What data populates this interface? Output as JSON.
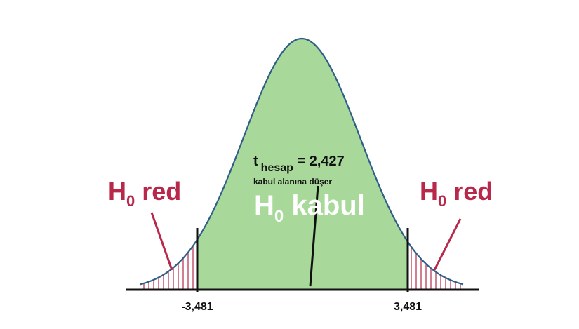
{
  "distribution": {
    "critical_left": -3.481,
    "critical_right": 3.481,
    "t_computed": 2.427
  },
  "labels": {
    "left_reject": {
      "main": "H",
      "sub": "0",
      "rest": " red"
    },
    "right_reject": {
      "main": "H",
      "sub": "0",
      "rest": " red"
    },
    "accept": {
      "main": "H",
      "sub": "0",
      "rest": " kabul"
    },
    "t_stat": {
      "main": "t",
      "sub": "hesap",
      "rest": " = 2,427"
    },
    "note": "kabul alanına düşer",
    "crit_left": "-3,481",
    "crit_right": "3,481"
  },
  "colors": {
    "curve": "#2f5f86",
    "accept_fill": "#a8d99a",
    "hatch": "#b8284a",
    "reject_text": "#b8284a",
    "axis": "#111111"
  }
}
